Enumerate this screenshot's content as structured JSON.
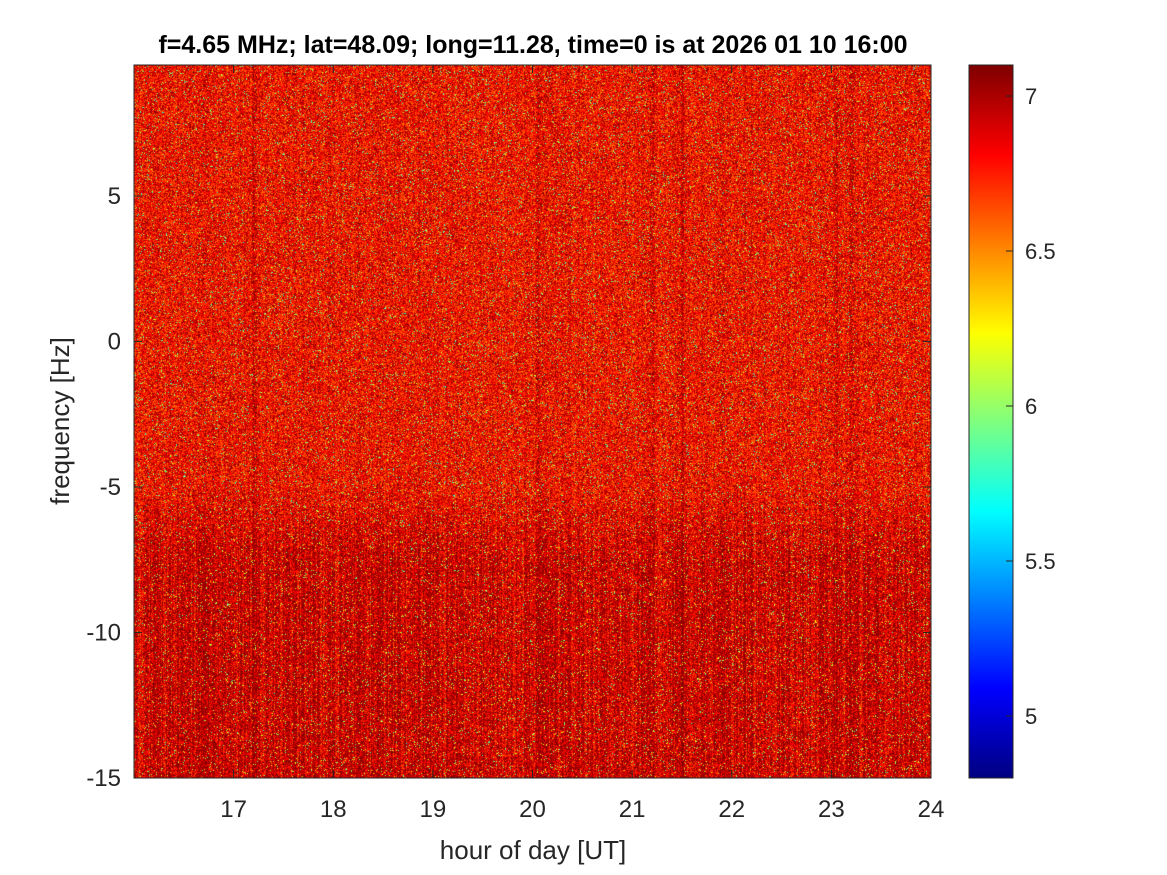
{
  "chart_data": {
    "type": "heatmap",
    "title": "f=4.65 MHz;  lat=48.09; long=11.28, time=0 is at 2026 01 10 16:00",
    "xlabel": "hour of day [UT]",
    "ylabel": "frequency [Hz]",
    "xlim": [
      16,
      24
    ],
    "ylim": [
      -15,
      9.5
    ],
    "x_ticks": [
      17,
      18,
      19,
      20,
      21,
      22,
      23,
      24
    ],
    "x_tick_labels": [
      "17",
      "18",
      "19",
      "20",
      "21",
      "22",
      "23",
      "24"
    ],
    "y_ticks": [
      -15,
      -10,
      -5,
      0,
      5
    ],
    "y_tick_labels": [
      "-15",
      "-10",
      "-5",
      "0",
      "5"
    ],
    "colorbar": {
      "colormap": "jet",
      "clim": [
        4.8,
        7.1
      ],
      "ticks": [
        5,
        5.5,
        6,
        6.5,
        7
      ],
      "tick_labels": [
        "5",
        "5.5",
        "6",
        "6.5",
        "7"
      ]
    },
    "data_summary": {
      "typical_value_range": [
        6.6,
        7.1
      ],
      "noise_floor_level": 6.8,
      "enhanced_band_hz": [
        -15,
        -5
      ],
      "vertical_streak_hours": [
        17.2,
        20.05,
        21.2,
        21.5,
        23.05,
        23.2
      ]
    }
  }
}
